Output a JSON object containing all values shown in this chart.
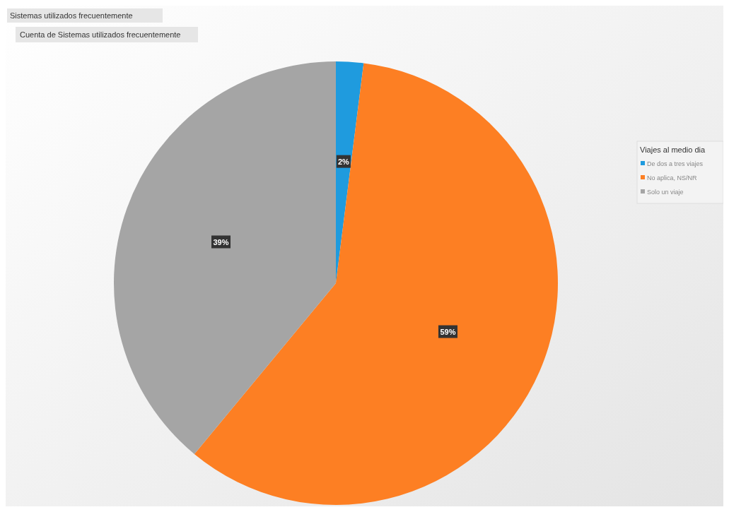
{
  "chart_data": {
    "type": "pie",
    "title": "Sistemas utilizados frecuentemente",
    "subtitle": "Cuenta de Sistemas utilizados frecuentemente",
    "legend_title": "Viajes al medio dia",
    "categories": [
      "De dos a tres viajes",
      "No aplica, NS/NR",
      "Solo un viaje"
    ],
    "values": [
      2,
      59,
      39
    ],
    "colors": [
      "#1f9bde",
      "#fd7f23",
      "#a5a5a5"
    ],
    "value_labels": [
      "2%",
      "59%",
      "39%"
    ],
    "legend": "right"
  }
}
